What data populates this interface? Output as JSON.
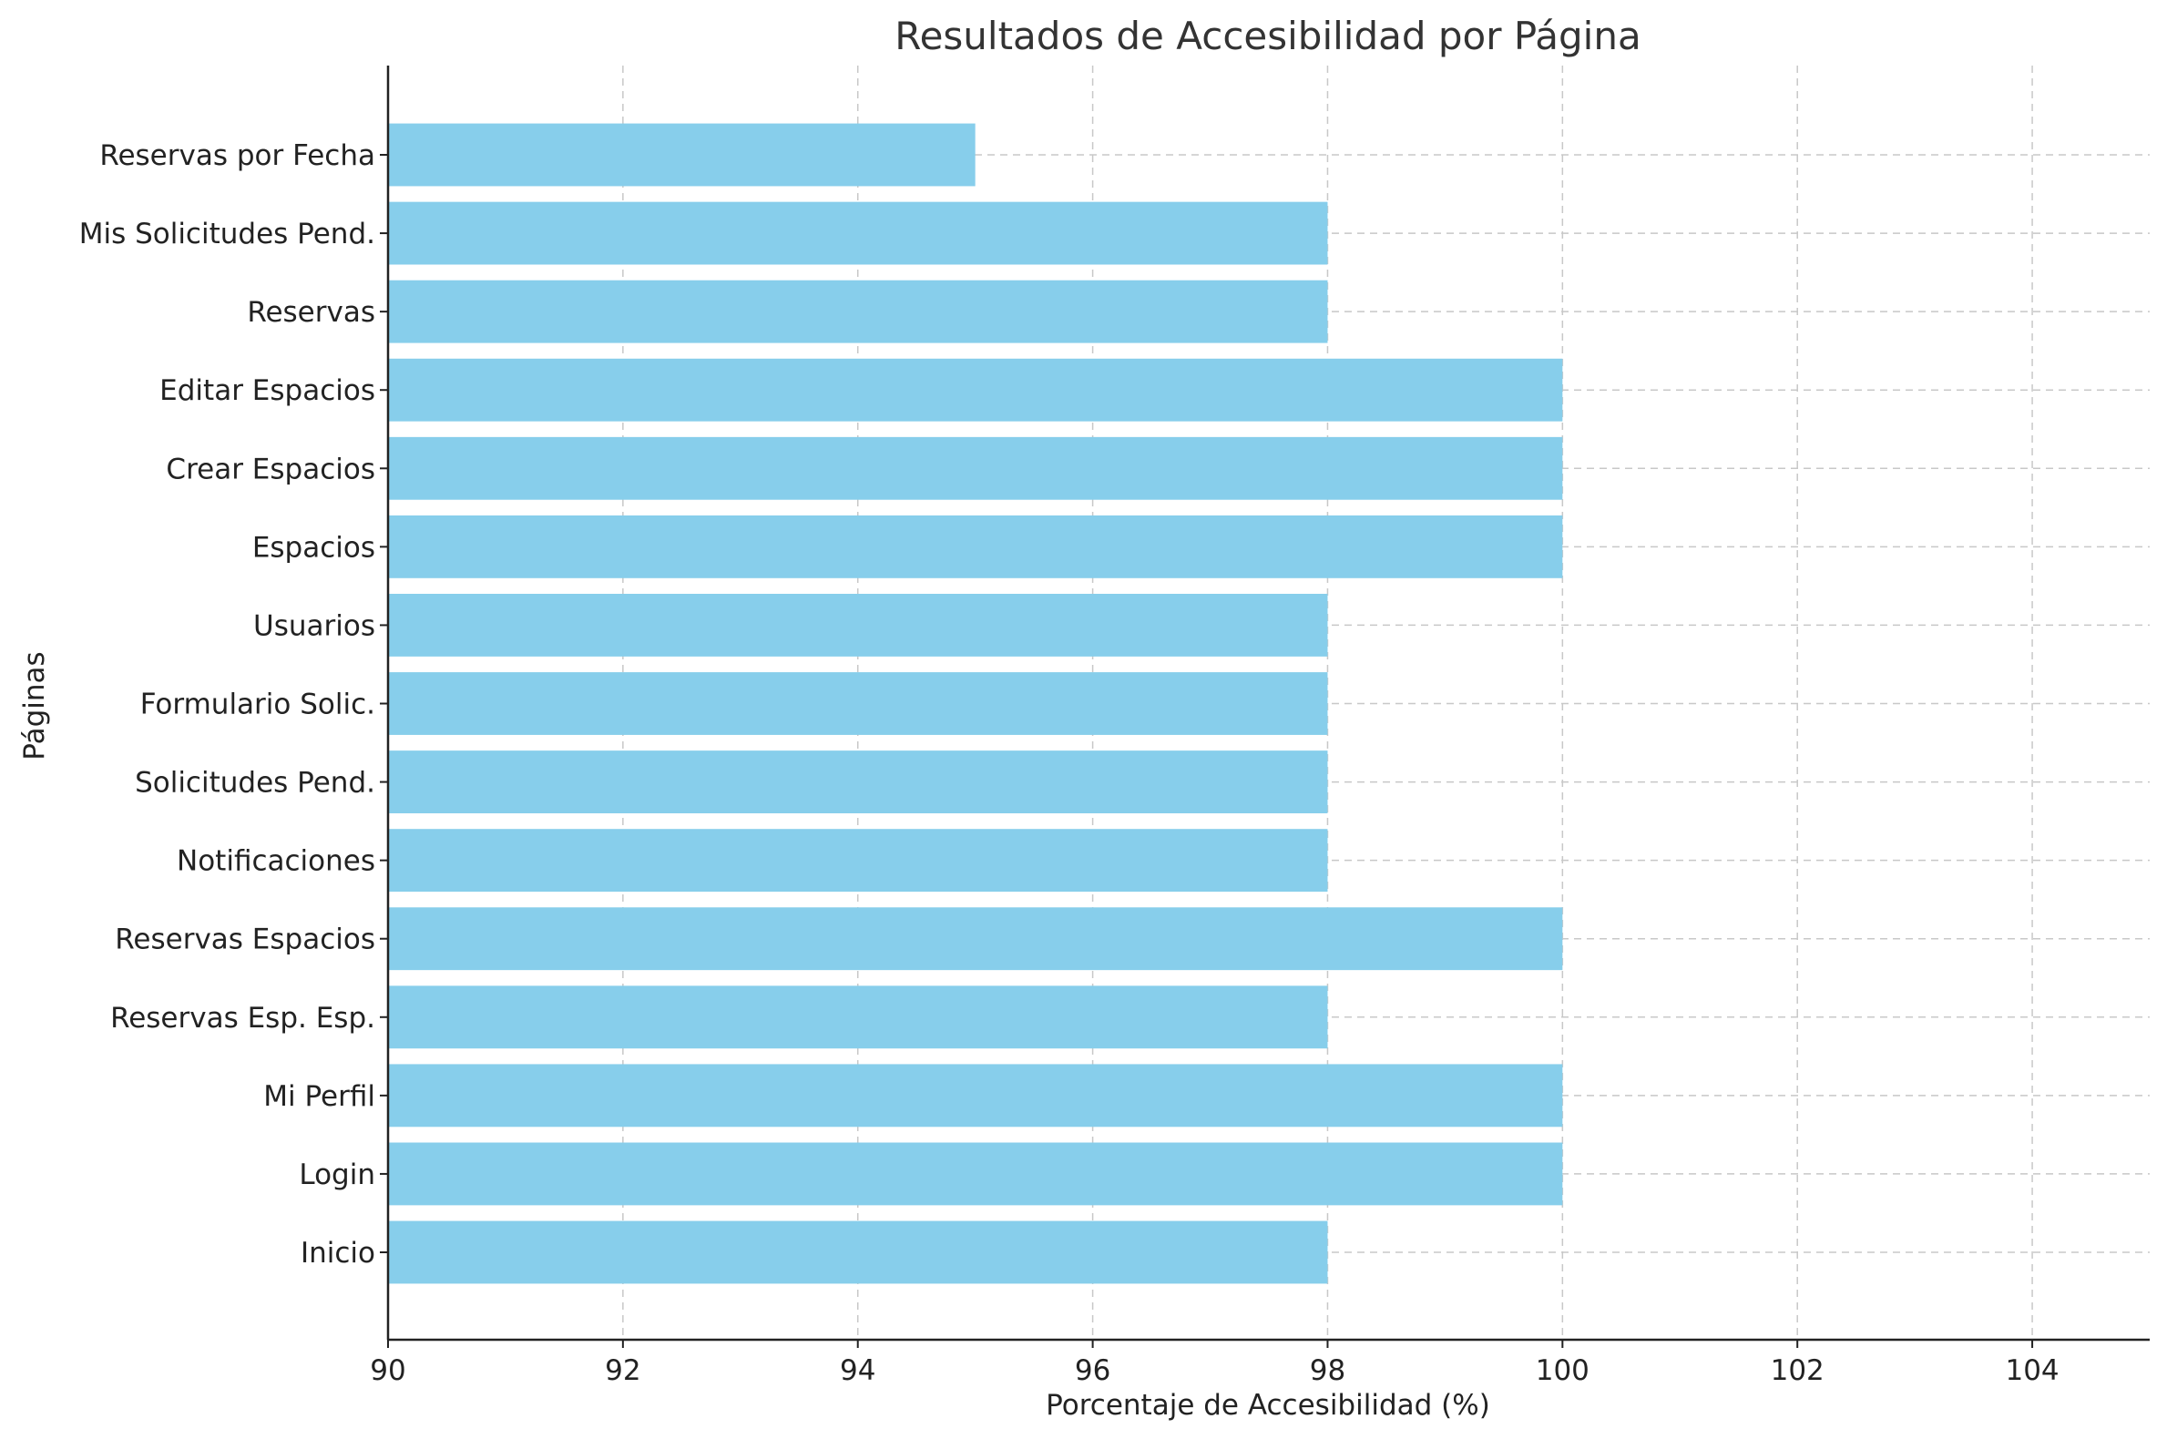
{
  "chart_data": {
    "type": "bar",
    "orientation": "horizontal",
    "title": "Resultados de Accesibilidad por Página",
    "xlabel": "Porcentaje de Accesibilidad (%)",
    "ylabel": "Páginas",
    "xlim": [
      90,
      105
    ],
    "xticks": [
      "90",
      "92",
      "94",
      "96",
      "98",
      "100",
      "102",
      "104"
    ],
    "grid": true,
    "bar_color": "#87ceeb",
    "categories": [
      "Inicio",
      "Login",
      "Mi Perfil",
      "Reservas Esp. Esp.",
      "Reservas Espacios",
      "Notificaciones",
      "Solicitudes Pend.",
      "Formulario Solic.",
      "Usuarios",
      "Espacios",
      "Crear Espacios",
      "Editar Espacios",
      "Reservas",
      "Mis Solicitudes Pend.",
      "Reservas por Fecha"
    ],
    "values": [
      98,
      100,
      100,
      98,
      100,
      98,
      98,
      98,
      98,
      100,
      100,
      100,
      98,
      98,
      95
    ]
  }
}
